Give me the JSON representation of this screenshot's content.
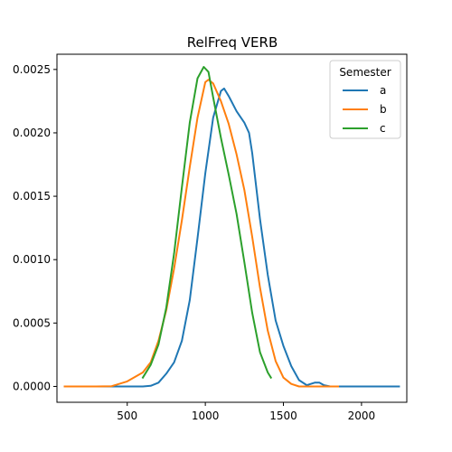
{
  "chart_data": {
    "type": "line",
    "title": "RelFreq VERB",
    "xlabel": "",
    "ylabel": "",
    "xlim": [
      50,
      2290
    ],
    "ylim": [
      -0.000125,
      0.00262
    ],
    "xticks": [
      500,
      1000,
      1500,
      2000
    ],
    "xtick_labels": [
      "500",
      "1000",
      "1500",
      "2000"
    ],
    "yticks": [
      0.0,
      0.0005,
      0.001,
      0.0015,
      0.002,
      0.0025
    ],
    "ytick_labels": [
      "0.0000",
      "0.0005",
      "0.0010",
      "0.0015",
      "0.0020",
      "0.0025"
    ],
    "grid": false,
    "legend": {
      "title": "Semester",
      "placement": "top-right"
    },
    "series": [
      {
        "name": "a",
        "color": "#1f77b4",
        "x": [
          100,
          300,
          500,
          600,
          650,
          700,
          750,
          800,
          850,
          900,
          950,
          1000,
          1050,
          1100,
          1120,
          1150,
          1200,
          1250,
          1280,
          1300,
          1350,
          1400,
          1450,
          1500,
          1550,
          1600,
          1650,
          1700,
          1730,
          1760,
          1800,
          2000,
          2240
        ],
        "values": [
          0,
          0,
          0,
          0,
          5e-06,
          3e-05,
          0.0001,
          0.00019,
          0.00036,
          0.00068,
          0.00117,
          0.00168,
          0.00212,
          0.00233,
          0.00235,
          0.00229,
          0.00217,
          0.00208,
          0.002,
          0.00184,
          0.00132,
          0.00088,
          0.00052,
          0.00032,
          0.00016,
          5e-05,
          1e-05,
          3e-05,
          3e-05,
          1e-05,
          0,
          0,
          0
        ]
      },
      {
        "name": "b",
        "color": "#ff7f0e",
        "x": [
          100,
          300,
          400,
          500,
          600,
          650,
          700,
          750,
          800,
          850,
          900,
          950,
          1000,
          1020,
          1050,
          1100,
          1150,
          1200,
          1250,
          1300,
          1350,
          1400,
          1450,
          1500,
          1550,
          1600,
          1700,
          1850
        ],
        "values": [
          0,
          0,
          2e-06,
          4e-05,
          0.00011,
          0.00019,
          0.00036,
          0.0006,
          0.00093,
          0.00131,
          0.00173,
          0.00212,
          0.0024,
          0.00242,
          0.00239,
          0.00225,
          0.00207,
          0.00183,
          0.00155,
          0.00118,
          0.00078,
          0.00044,
          0.0002,
          7e-05,
          2e-05,
          0,
          0,
          0
        ]
      },
      {
        "name": "c",
        "color": "#2ca02c",
        "x": [
          600,
          650,
          700,
          750,
          800,
          850,
          900,
          950,
          990,
          1020,
          1050,
          1100,
          1150,
          1200,
          1250,
          1300,
          1350,
          1400,
          1420
        ],
        "values": [
          7e-05,
          0.00017,
          0.00033,
          0.00062,
          0.00105,
          0.00157,
          0.00208,
          0.00243,
          0.00252,
          0.00248,
          0.00228,
          0.00196,
          0.00167,
          0.00136,
          0.00098,
          0.00058,
          0.00027,
          0.00011,
          7e-05
        ]
      }
    ]
  }
}
